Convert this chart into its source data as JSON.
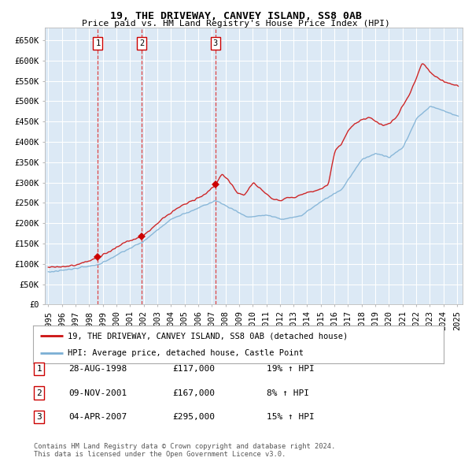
{
  "title": "19, THE DRIVEWAY, CANVEY ISLAND, SS8 0AB",
  "subtitle": "Price paid vs. HM Land Registry's House Price Index (HPI)",
  "background_color": "#dce9f5",
  "grid_color": "#ffffff",
  "ylim": [
    0,
    680000
  ],
  "yticks": [
    0,
    50000,
    100000,
    150000,
    200000,
    250000,
    300000,
    350000,
    400000,
    450000,
    500000,
    550000,
    600000,
    650000
  ],
  "ytick_labels": [
    "£0",
    "£50K",
    "£100K",
    "£150K",
    "£200K",
    "£250K",
    "£300K",
    "£350K",
    "£400K",
    "£450K",
    "£500K",
    "£550K",
    "£600K",
    "£650K"
  ],
  "sale1_date": 1998.64,
  "sale1_price": 117000,
  "sale2_date": 2001.86,
  "sale2_price": 167000,
  "sale3_date": 2007.25,
  "sale3_price": 295000,
  "vline_color": "#dd3333",
  "sale_dot_color": "#cc0000",
  "hpi_line_color": "#7bafd4",
  "price_line_color": "#cc1111",
  "legend_line1": "19, THE DRIVEWAY, CANVEY ISLAND, SS8 0AB (detached house)",
  "legend_line2": "HPI: Average price, detached house, Castle Point",
  "table_rows": [
    [
      "1",
      "28-AUG-1998",
      "£117,000",
      "19% ↑ HPI"
    ],
    [
      "2",
      "09-NOV-2001",
      "£167,000",
      "8% ↑ HPI"
    ],
    [
      "3",
      "04-APR-2007",
      "£295,000",
      "15% ↑ HPI"
    ]
  ],
  "footer": "Contains HM Land Registry data © Crown copyright and database right 2024.\nThis data is licensed under the Open Government Licence v3.0."
}
